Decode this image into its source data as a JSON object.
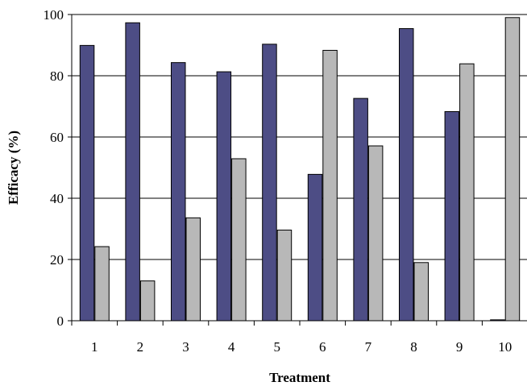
{
  "chart_data": {
    "type": "bar",
    "title": "",
    "xlabel": "Treatment",
    "ylabel": "Efficacy (%)",
    "categories": [
      "1",
      "2",
      "3",
      "4",
      "5",
      "6",
      "7",
      "8",
      "9",
      "10"
    ],
    "series": [
      {
        "values": [
          89.9,
          97.3,
          84.3,
          81.3,
          90.3,
          47.8,
          72.6,
          95.4,
          68.3,
          0.3
        ],
        "color": "#4d4d85"
      },
      {
        "values": [
          24.2,
          13.0,
          33.6,
          52.9,
          29.6,
          88.3,
          57.1,
          19.0,
          83.9,
          99.0
        ],
        "color": "#b8b8b8"
      }
    ],
    "ylim": [
      0,
      100
    ],
    "yticks": [
      0,
      20,
      40,
      60,
      80,
      100
    ],
    "grid": true,
    "legend": "none"
  }
}
